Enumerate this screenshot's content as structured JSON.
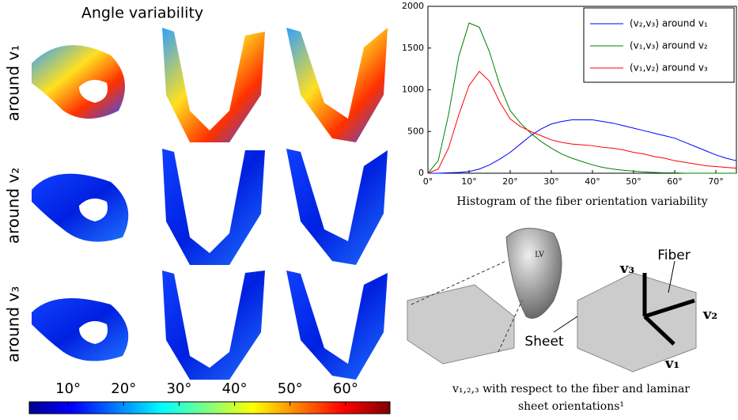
{
  "title": "Angle variability",
  "row_labels": [
    "around v₁",
    "around v₂",
    "around v₃"
  ],
  "colorbar": {
    "lim": [
      3,
      68
    ],
    "ticks": [
      {
        "value": 10,
        "label": "10°"
      },
      {
        "value": 20,
        "label": "20°"
      },
      {
        "value": 30,
        "label": "30°"
      },
      {
        "value": 40,
        "label": "40°"
      },
      {
        "value": 50,
        "label": "50°"
      },
      {
        "value": 60,
        "label": "60°"
      }
    ]
  },
  "chart_data": {
    "type": "line",
    "caption": "Histogram of the fiber orientation variability",
    "x": [
      0,
      2.5,
      5,
      7.5,
      10,
      12.5,
      15,
      17.5,
      20,
      22.5,
      25,
      27.5,
      30,
      32.5,
      35,
      37.5,
      40,
      42.5,
      45,
      47.5,
      50,
      52.5,
      55,
      57.5,
      60,
      62.5,
      65,
      67.5,
      70,
      72.5,
      75
    ],
    "series": [
      {
        "name": "(v₂,v₃) around v₁",
        "color": "#0000ff",
        "values": [
          0,
          0,
          5,
          10,
          20,
          50,
          100,
          170,
          250,
          350,
          450,
          530,
          590,
          620,
          640,
          640,
          640,
          620,
          600,
          570,
          540,
          510,
          480,
          450,
          420,
          370,
          320,
          270,
          220,
          180,
          150
        ]
      },
      {
        "name": "(v₁,v₃) around v₂",
        "color": "#008000",
        "values": [
          0,
          150,
          700,
          1400,
          1800,
          1750,
          1450,
          1050,
          750,
          600,
          480,
          380,
          300,
          230,
          180,
          140,
          100,
          70,
          50,
          35,
          25,
          15,
          10,
          5,
          5,
          0,
          0,
          0,
          0,
          0,
          0
        ]
      },
      {
        "name": "(v₁,v₂) around v₃",
        "color": "#ff0000",
        "values": [
          0,
          50,
          300,
          700,
          1050,
          1220,
          1100,
          850,
          650,
          560,
          500,
          450,
          400,
          370,
          350,
          340,
          330,
          310,
          300,
          280,
          250,
          230,
          200,
          180,
          150,
          130,
          110,
          90,
          80,
          70,
          60
        ]
      }
    ],
    "xlim": [
      0,
      75
    ],
    "ylim": [
      0,
      2000
    ],
    "xticks": [
      {
        "value": 0,
        "label": "0°"
      },
      {
        "value": 10,
        "label": "10°"
      },
      {
        "value": 20,
        "label": "20°"
      },
      {
        "value": 30,
        "label": "30°"
      },
      {
        "value": 40,
        "label": "40°"
      },
      {
        "value": 50,
        "label": "50°"
      },
      {
        "value": 60,
        "label": "60°"
      },
      {
        "value": 70,
        "label": "70°"
      }
    ],
    "yticks": [
      0,
      500,
      1000,
      1500,
      2000
    ],
    "legend": "upper right"
  },
  "diagram": {
    "lv": "LV",
    "fiber": "Fiber",
    "sheet": "Sheet",
    "v3": "v₃",
    "v2": "v₂",
    "v1": "v₁",
    "caption_1": "v₁,₂,₃ with respect to the fiber and laminar",
    "caption_2": "sheet orientations¹"
  }
}
